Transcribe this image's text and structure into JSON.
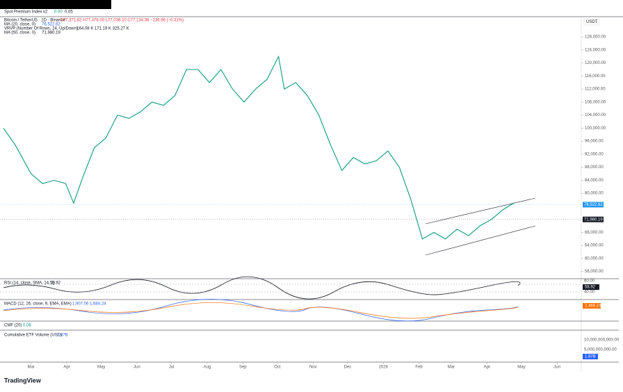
{
  "header": {
    "spot_title": "Spot Premium Index v2",
    "spot_v1": "0.00",
    "spot_v2": "0.05"
  },
  "chart_data": {
    "type": "line",
    "title": "Bitcoin / TetherUS · 1D · Binance",
    "ohlc": "O77,371.82 H77,478.00 L77,038.10 C77,134.36 −236.96 (−0.31%)",
    "currency": "USDT",
    "color": "#089981",
    "x": [
      -24,
      -14,
      0,
      10,
      20,
      30,
      37,
      45,
      55,
      65,
      75,
      85,
      95,
      105,
      115,
      125,
      135,
      145,
      155,
      165,
      175,
      185,
      195,
      205,
      215,
      220,
      230,
      240,
      250,
      260,
      270,
      280,
      290,
      300,
      310,
      320,
      330,
      340,
      350,
      360,
      370,
      380,
      390,
      400,
      410,
      420
    ],
    "values": [
      100000,
      95000,
      86000,
      83000,
      84000,
      83000,
      77000,
      85000,
      94000,
      97000,
      104000,
      103000,
      105000,
      108000,
      107000,
      110000,
      118000,
      118000,
      114000,
      118000,
      112000,
      108000,
      112000,
      115000,
      122000,
      112000,
      114000,
      110000,
      104000,
      95000,
      87000,
      91000,
      89000,
      90000,
      93000,
      88000,
      78000,
      66000,
      68000,
      66000,
      69000,
      67000,
      70000,
      72000,
      75000,
      77134
    ],
    "xlim": [
      -27,
      478
    ],
    "xticks": [
      {
        "value": 0,
        "label": "Mar"
      },
      {
        "value": 31,
        "label": "Apr"
      },
      {
        "value": 61,
        "label": "May"
      },
      {
        "value": 92,
        "label": "Jun"
      },
      {
        "value": 122,
        "label": "Jul"
      },
      {
        "value": 153,
        "label": "Aug"
      },
      {
        "value": 184,
        "label": "Sep"
      },
      {
        "value": 214,
        "label": "Oct"
      },
      {
        "value": 245,
        "label": "Nov"
      },
      {
        "value": 275,
        "label": "Dec"
      },
      {
        "value": 306,
        "label": "2026"
      },
      {
        "value": 337,
        "label": "Feb"
      },
      {
        "value": 365,
        "label": "Mar"
      },
      {
        "value": 396,
        "label": "Apr"
      },
      {
        "value": 426,
        "label": "May"
      },
      {
        "value": 457,
        "label": "Jun"
      }
    ],
    "ylim": [
      54000,
      134000
    ],
    "yticks": [
      {
        "value": 56000,
        "label": "56,000.00"
      },
      {
        "value": 60000,
        "label": "60,000.00"
      },
      {
        "value": 64000,
        "label": "64,000.00"
      },
      {
        "value": 68000,
        "label": "68,000.00"
      },
      {
        "value": 80000,
        "label": "80,000.00"
      },
      {
        "value": 84000,
        "label": "84,000.00"
      },
      {
        "value": 88000,
        "label": "88,000.00"
      },
      {
        "value": 92000,
        "label": "92,000.00"
      },
      {
        "value": 96000,
        "label": "96,000.00"
      },
      {
        "value": 100000,
        "label": "100,000.00"
      },
      {
        "value": 104000,
        "label": "104,000.00"
      },
      {
        "value": 108000,
        "label": "108,000.00"
      },
      {
        "value": 112000,
        "label": "112,000.00"
      },
      {
        "value": 116000,
        "label": "116,000.00"
      },
      {
        "value": 120000,
        "label": "120,000.00"
      },
      {
        "value": 124000,
        "label": "124,000.00"
      },
      {
        "value": 128000,
        "label": "128,000.00"
      }
    ],
    "indicators": [
      {
        "label": "MA (20, close, 0)",
        "value": "76,522.62",
        "color": "#2962ff"
      },
      {
        "label": "VRVP (Number Of Rows, 24, Up/Down)",
        "value": "164.08 K 171.19 K 325.27 K",
        "color": "#131722"
      },
      {
        "label": "MA (50, close, 0)",
        "value": "71,980.19",
        "color": "#131722"
      }
    ],
    "price_tags": [
      {
        "value": 76522.62,
        "label": "76,522.62",
        "color": "#2196f3"
      },
      {
        "value": 71980.19,
        "label": "71,980.19",
        "color": "#131722"
      }
    ]
  },
  "panes": [
    {
      "title": "RSI (14, close, SMA, 14, 2)",
      "value": "58.92",
      "axis": [
        "60.00",
        "40.00"
      ],
      "tag": "58.92"
    },
    {
      "title": "MACD (12, 26, close, 9, EMA, EMA)",
      "value": "1,907.06  1,684.24",
      "tag": "2,469.24"
    },
    {
      "title": "CMF (20)",
      "value": "0.08"
    },
    {
      "title": "Cumulative ETF Volume (USD)",
      "value": "1.87B",
      "axis": [
        "10,000,000,000.00",
        "5,000,000,000.00"
      ],
      "tag": "1.87B"
    }
  ],
  "footer": {
    "brand": "TradingView"
  }
}
